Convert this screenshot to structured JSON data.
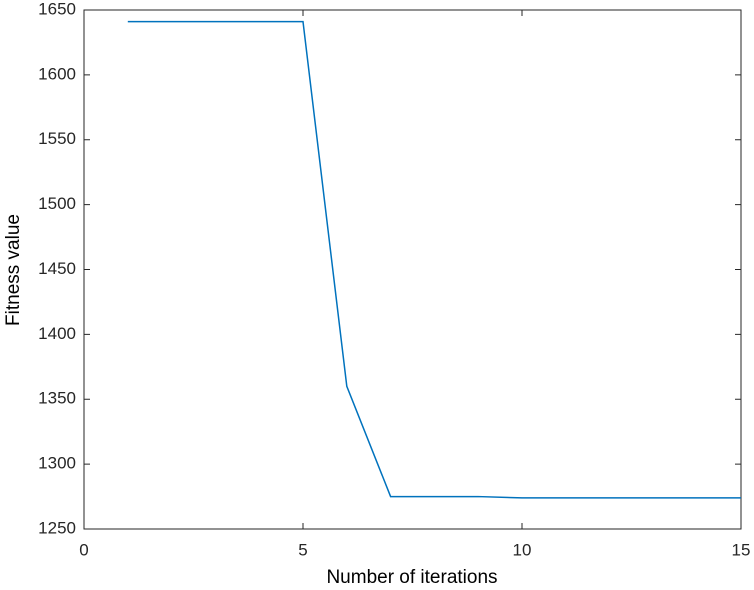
{
  "chart_data": {
    "type": "line",
    "x_label": "Number of iterations",
    "y_label": "Fitness value",
    "x": [
      1,
      2,
      3,
      4,
      5,
      6,
      7,
      8,
      9,
      10,
      11,
      12,
      13,
      14,
      15
    ],
    "series": [
      {
        "color": "#0072bd",
        "values": [
          1641,
          1641,
          1641,
          1641,
          1641,
          1360,
          1275,
          1275,
          1275,
          1274,
          1274,
          1274,
          1274,
          1274,
          1274
        ]
      }
    ],
    "xlim": [
      0,
      15
    ],
    "xticks": [
      0,
      5,
      10,
      15
    ],
    "ylim": [
      1250,
      1650
    ],
    "yticks": [
      1250,
      1300,
      1350,
      1400,
      1450,
      1500,
      1550,
      1600,
      1650
    ]
  }
}
